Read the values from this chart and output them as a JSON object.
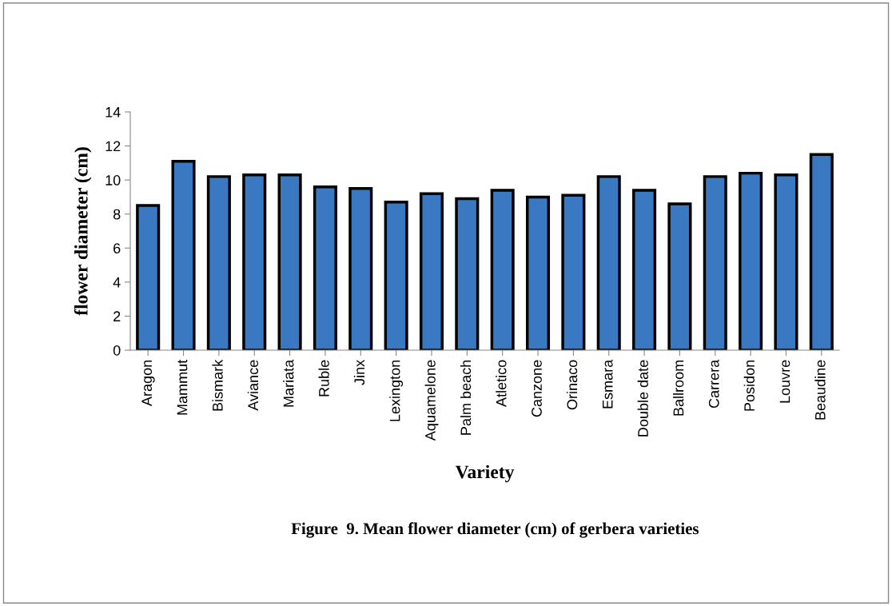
{
  "chart_data": {
    "type": "bar",
    "xlabel": "Variety",
    "ylabel": "flower diameter (cm)",
    "annotations": [
      "Figure  9. Mean flower diameter (cm) of gerbera varieties"
    ],
    "categories": [
      "Aragon",
      "Mammut",
      "Bismark",
      "Aviance",
      "Mariata",
      "Ruble",
      "Jinx",
      "Lexington",
      "Aquamelone",
      "Palm beach",
      "Atletico",
      "Canzone",
      "Orinaco",
      "Esmara",
      "Double date",
      "Ballroom",
      "Carrera",
      "Posidon",
      "Louvre",
      "Beaudine"
    ],
    "values": [
      8.5,
      11.1,
      10.2,
      10.3,
      10.3,
      9.6,
      9.5,
      8.7,
      9.2,
      8.9,
      9.4,
      9.0,
      9.1,
      10.2,
      9.4,
      8.6,
      10.2,
      10.4,
      10.3,
      11.5
    ],
    "color": "#3a78c2",
    "ylim": [
      0,
      14
    ],
    "yticks": [
      0,
      2,
      4,
      6,
      8,
      10,
      12,
      14
    ],
    "grid": false
  }
}
